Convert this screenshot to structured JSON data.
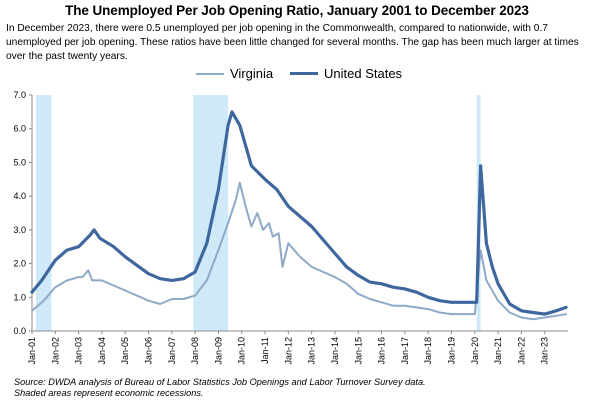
{
  "title": "The Unemployed Per Job Opening Ratio, January 2001 to December 2023",
  "subtitle": "In December 2023, there were 0.5 unemployed per job opening in the Commonwealth, compared to nationwide, with 0.7 unemployed per job opening. These ratios have been little changed for several months. The gap has been much larger at times over the past twenty years.",
  "source_line1": "Source: DWDA analysis of Bureau of Labor Statistics Job Openings and Labor Turnover Survey data.",
  "source_line2": "Shaded areas represent economic recessions.",
  "chart_data": {
    "type": "line",
    "title": "The Unemployed Per Job Opening Ratio, January 2001 to December 2023",
    "xlabel": "",
    "ylabel": "",
    "ylim": [
      0,
      7
    ],
    "yticks": [
      "0.0",
      "1.0",
      "2.0",
      "3.0",
      "4.0",
      "5.0",
      "6.0",
      "7.0"
    ],
    "xlim": [
      2001.0,
      2024.0
    ],
    "xticks": [
      "Jan-01",
      "Jan-02",
      "Jan-03",
      "Jan-04",
      "Jan-05",
      "Jan-06",
      "Jan-07",
      "Jan-08",
      "Jan-09",
      "Jan-10",
      "Jan-11",
      "Jan-12",
      "Jan-13",
      "Jan-14",
      "Jan-15",
      "Jan-16",
      "Jan-17",
      "Jan-18",
      "Jan-19",
      "Jan-20",
      "Jan-21",
      "Jan-22",
      "Jan-23"
    ],
    "legend_position": "top-center",
    "grid": false,
    "recessions": [
      {
        "start": "Mar-01",
        "end": "Nov-01"
      },
      {
        "start": "Dec-07",
        "end": "Jun-09"
      },
      {
        "start": "Feb-20",
        "end": "Apr-20"
      }
    ],
    "series": [
      {
        "name": "Virginia",
        "color": "#8fa9c8",
        "points": [
          [
            "Jan-01",
            0.6
          ],
          [
            "Jul-01",
            0.9
          ],
          [
            "Jan-02",
            1.3
          ],
          [
            "Jul-02",
            1.5
          ],
          [
            "Jan-03",
            1.6
          ],
          [
            "Mar-03",
            1.6
          ],
          [
            "Jun-03",
            1.8
          ],
          [
            "Aug-03",
            1.5
          ],
          [
            "Jan-04",
            1.5
          ],
          [
            "Jul-04",
            1.35
          ],
          [
            "Jan-05",
            1.2
          ],
          [
            "Jul-05",
            1.05
          ],
          [
            "Jan-06",
            0.9
          ],
          [
            "Jul-06",
            0.8
          ],
          [
            "Jan-07",
            0.95
          ],
          [
            "Jul-07",
            0.95
          ],
          [
            "Jan-08",
            1.05
          ],
          [
            "Jul-08",
            1.5
          ],
          [
            "Jan-09",
            2.4
          ],
          [
            "Jun-09",
            3.2
          ],
          [
            "Oct-09",
            3.9
          ],
          [
            "Dec-09",
            4.4
          ],
          [
            "Mar-10",
            3.7
          ],
          [
            "Jun-10",
            3.1
          ],
          [
            "Sep-10",
            3.5
          ],
          [
            "Dec-10",
            3.0
          ],
          [
            "Mar-11",
            3.2
          ],
          [
            "May-11",
            2.8
          ],
          [
            "Aug-11",
            2.9
          ],
          [
            "Oct-11",
            1.9
          ],
          [
            "Jan-12",
            2.6
          ],
          [
            "Jul-12",
            2.2
          ],
          [
            "Jan-13",
            1.9
          ],
          [
            "Jul-13",
            1.75
          ],
          [
            "Jan-14",
            1.6
          ],
          [
            "Jul-14",
            1.4
          ],
          [
            "Jan-15",
            1.1
          ],
          [
            "Jul-15",
            0.95
          ],
          [
            "Jan-16",
            0.85
          ],
          [
            "Jul-16",
            0.75
          ],
          [
            "Jan-17",
            0.75
          ],
          [
            "Jul-17",
            0.7
          ],
          [
            "Jan-18",
            0.65
          ],
          [
            "Jul-18",
            0.55
          ],
          [
            "Jan-19",
            0.5
          ],
          [
            "Jul-19",
            0.5
          ],
          [
            "Jan-20",
            0.5
          ],
          [
            "Apr-20",
            2.4
          ],
          [
            "Jul-20",
            1.5
          ],
          [
            "Jan-21",
            0.9
          ],
          [
            "Jul-21",
            0.55
          ],
          [
            "Jan-22",
            0.4
          ],
          [
            "Jul-22",
            0.35
          ],
          [
            "Jan-23",
            0.4
          ],
          [
            "Jul-23",
            0.45
          ],
          [
            "Dec-23",
            0.5
          ]
        ]
      },
      {
        "name": "United States",
        "color": "#3e679e",
        "points": [
          [
            "Jan-01",
            1.15
          ],
          [
            "Jun-01",
            1.5
          ],
          [
            "Jan-02",
            2.1
          ],
          [
            "Jul-02",
            2.4
          ],
          [
            "Jan-03",
            2.5
          ],
          [
            "Jul-03",
            2.85
          ],
          [
            "Sep-03",
            3.0
          ],
          [
            "Dec-03",
            2.75
          ],
          [
            "Jul-04",
            2.5
          ],
          [
            "Jan-05",
            2.2
          ],
          [
            "Jul-05",
            1.95
          ],
          [
            "Jan-06",
            1.7
          ],
          [
            "Jul-06",
            1.55
          ],
          [
            "Jan-07",
            1.5
          ],
          [
            "Jul-07",
            1.55
          ],
          [
            "Jan-08",
            1.75
          ],
          [
            "Jul-08",
            2.6
          ],
          [
            "Jan-09",
            4.2
          ],
          [
            "Jun-09",
            6.1
          ],
          [
            "Aug-09",
            6.5
          ],
          [
            "Dec-09",
            6.1
          ],
          [
            "Mar-10",
            5.5
          ],
          [
            "Jun-10",
            4.9
          ],
          [
            "Jan-11",
            4.5
          ],
          [
            "Jul-11",
            4.2
          ],
          [
            "Jan-12",
            3.7
          ],
          [
            "Jul-12",
            3.4
          ],
          [
            "Jan-13",
            3.1
          ],
          [
            "Jul-13",
            2.7
          ],
          [
            "Jan-14",
            2.3
          ],
          [
            "Jul-14",
            1.9
          ],
          [
            "Jan-15",
            1.65
          ],
          [
            "Jul-15",
            1.45
          ],
          [
            "Jan-16",
            1.4
          ],
          [
            "Jul-16",
            1.3
          ],
          [
            "Jan-17",
            1.25
          ],
          [
            "Jul-17",
            1.15
          ],
          [
            "Jan-18",
            1.0
          ],
          [
            "Jul-18",
            0.9
          ],
          [
            "Jan-19",
            0.85
          ],
          [
            "Jul-19",
            0.85
          ],
          [
            "Feb-20",
            0.85
          ],
          [
            "Apr-20",
            4.9
          ],
          [
            "Jul-20",
            2.6
          ],
          [
            "Oct-20",
            1.9
          ],
          [
            "Jan-21",
            1.4
          ],
          [
            "Jul-21",
            0.8
          ],
          [
            "Jan-22",
            0.6
          ],
          [
            "Jul-22",
            0.55
          ],
          [
            "Jan-23",
            0.5
          ],
          [
            "Jul-23",
            0.6
          ],
          [
            "Dec-23",
            0.7
          ]
        ]
      }
    ]
  }
}
